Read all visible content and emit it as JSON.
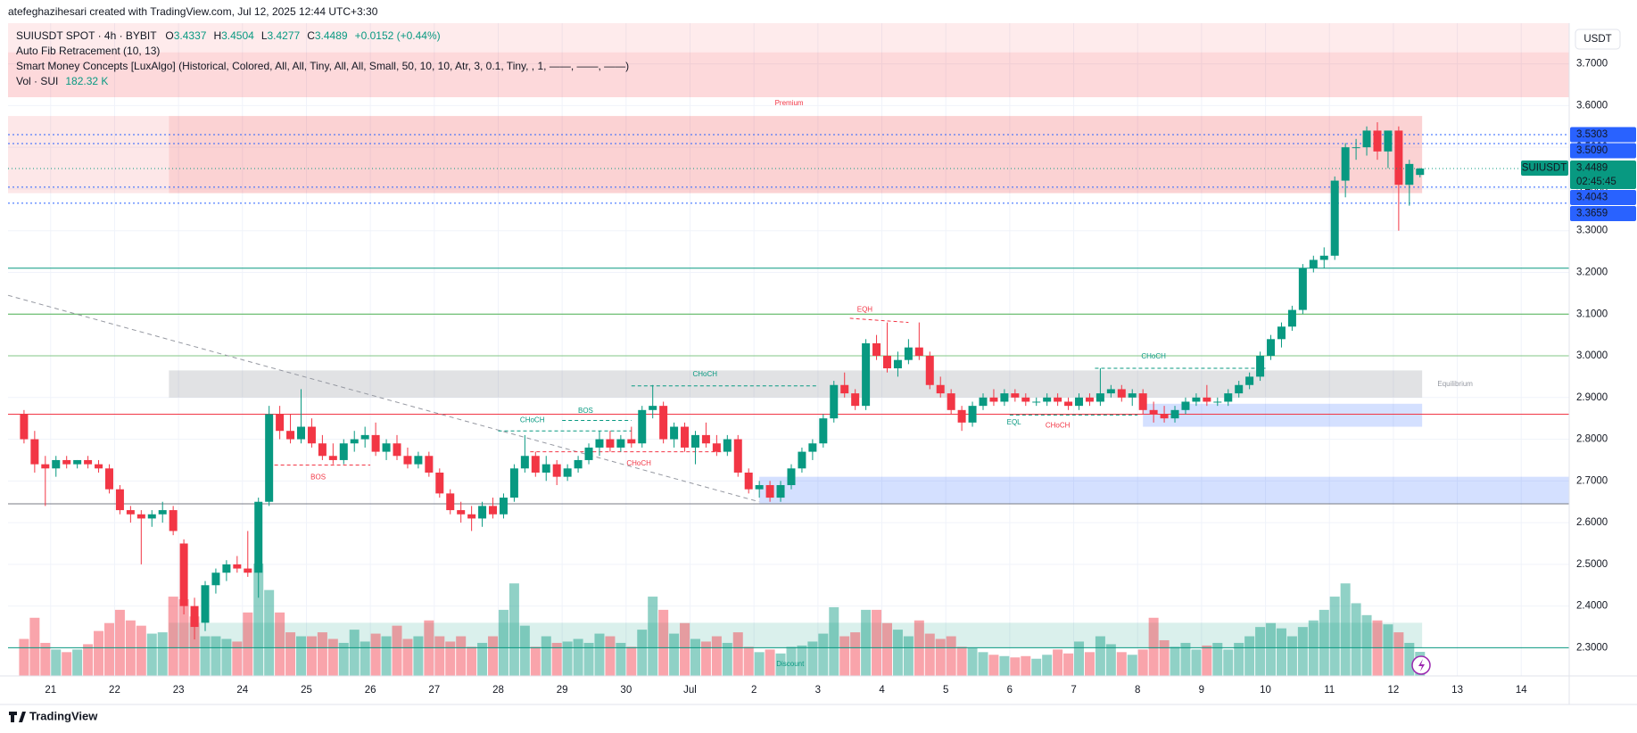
{
  "header": {
    "credit": "atefeghazihesari created with TradingView.com, Jul 12, 2025 12:44 UTC+3:30",
    "symbol": "SUIUSDT SPOT · 4h · BYBIT",
    "o": "O",
    "h": "H",
    "l": "L",
    "c": "C",
    "change": "+0.0152 (+0.44%)",
    "indicator_1": "Auto Fib Retracement (10, 13)",
    "indicator_2": "Smart Money Concepts [LuxAlgo] (Historical, Colored, All, All, Tiny, All, All, Small, 50, 10, 10, Atr, 3, 0.1, Tiny, , 1, ——, ——, ——)",
    "vol_title": "Vol · SUI",
    "vol_value": "182.32 K",
    "currency": "USDT",
    "logo": "TradingView"
  },
  "chart_data": {
    "type": "candlestick",
    "up_color": "#089981",
    "down_color": "#f23645",
    "grid": true,
    "price_tag": "SUIUSDT",
    "countdown": "02:45:45",
    "xlim": [
      -1,
      145.5
    ],
    "ylim": [
      2.2325,
      3.7975
    ],
    "xticks": [
      {
        "value": 3,
        "label": "21"
      },
      {
        "value": 9,
        "label": "22"
      },
      {
        "value": 15,
        "label": "23"
      },
      {
        "value": 21,
        "label": "24"
      },
      {
        "value": 27,
        "label": "25"
      },
      {
        "value": 33,
        "label": "26"
      },
      {
        "value": 39,
        "label": "27"
      },
      {
        "value": 45,
        "label": "28"
      },
      {
        "value": 51,
        "label": "29"
      },
      {
        "value": 57,
        "label": "30"
      },
      {
        "value": 63,
        "label": "Jul"
      },
      {
        "value": 69,
        "label": "2"
      },
      {
        "value": 75,
        "label": "3"
      },
      {
        "value": 81,
        "label": "4"
      },
      {
        "value": 87,
        "label": "5"
      },
      {
        "value": 93,
        "label": "6"
      },
      {
        "value": 99,
        "label": "7"
      },
      {
        "value": 105,
        "label": "8"
      },
      {
        "value": 111,
        "label": "9"
      },
      {
        "value": 117,
        "label": "10"
      },
      {
        "value": 123,
        "label": "11"
      },
      {
        "value": 129,
        "label": "12"
      },
      {
        "value": 135,
        "label": "13"
      },
      {
        "value": 141,
        "label": "14"
      }
    ],
    "yticks": [
      {
        "value": 2.3,
        "label": "2.3000"
      },
      {
        "value": 2.4,
        "label": "2.4000"
      },
      {
        "value": 2.5,
        "label": "2.5000"
      },
      {
        "value": 2.6,
        "label": "2.6000"
      },
      {
        "value": 2.7,
        "label": "2.7000"
      },
      {
        "value": 2.8,
        "label": "2.8000"
      },
      {
        "value": 2.9,
        "label": "2.9000"
      },
      {
        "value": 3.0,
        "label": "3.0000"
      },
      {
        "value": 3.1,
        "label": "3.1000"
      },
      {
        "value": 3.2,
        "label": "3.2000"
      },
      {
        "value": 3.3,
        "label": "3.3000"
      },
      {
        "value": 3.4,
        "label": "3.4000"
      },
      {
        "value": 3.5,
        "label": "3.5000"
      },
      {
        "value": 3.6,
        "label": "3.6000"
      },
      {
        "value": 3.7,
        "label": "3.7000"
      }
    ],
    "open": [
      2.86,
      2.8,
      2.74,
      2.73,
      2.75,
      2.74,
      2.75,
      2.74,
      2.73,
      2.68,
      2.63,
      2.62,
      2.61,
      2.62,
      2.63,
      2.55,
      2.4,
      2.36,
      2.45,
      2.48,
      2.5,
      2.49,
      2.48,
      2.65,
      2.86,
      2.82,
      2.8,
      2.83,
      2.79,
      2.76,
      2.75,
      2.79,
      2.8,
      2.81,
      2.77,
      2.79,
      2.76,
      2.74,
      2.76,
      2.72,
      2.67,
      2.63,
      2.62,
      2.61,
      2.64,
      2.62,
      2.66,
      2.73,
      2.76,
      2.72,
      2.74,
      2.71,
      2.73,
      2.75,
      2.78,
      2.8,
      2.78,
      2.8,
      2.79,
      2.87,
      2.88,
      2.8,
      2.83,
      2.78,
      2.81,
      2.79,
      2.77,
      2.8,
      2.72,
      2.68,
      2.69,
      2.66,
      2.69,
      2.73,
      2.77,
      2.79,
      2.85,
      2.93,
      2.91,
      2.88,
      3.03,
      3.0,
      2.97,
      2.99,
      3.02,
      3.0,
      2.93,
      2.91,
      2.87,
      2.84,
      2.88,
      2.9,
      2.89,
      2.91,
      2.9,
      2.89,
      2.89,
      2.9,
      2.89,
      2.88,
      2.9,
      2.89,
      2.91,
      2.92,
      2.9,
      2.91,
      2.87,
      2.86,
      2.85,
      2.87,
      2.89,
      2.9,
      2.89,
      2.89,
      2.91,
      2.93,
      2.95,
      3.0,
      3.04,
      3.07,
      3.11,
      3.21,
      3.23,
      3.24,
      3.42,
      3.5,
      3.5,
      3.54,
      3.49,
      3.54,
      3.41,
      3.4337
    ],
    "high": [
      2.87,
      2.82,
      2.76,
      2.76,
      2.76,
      2.75,
      2.76,
      2.75,
      2.74,
      2.69,
      2.64,
      2.63,
      2.63,
      2.65,
      2.64,
      2.56,
      2.42,
      2.46,
      2.49,
      2.51,
      2.52,
      2.58,
      2.66,
      2.88,
      2.88,
      2.86,
      2.92,
      2.85,
      2.81,
      2.79,
      2.8,
      2.82,
      2.83,
      2.84,
      2.8,
      2.81,
      2.78,
      2.77,
      2.77,
      2.73,
      2.68,
      2.65,
      2.64,
      2.65,
      2.66,
      2.67,
      2.74,
      2.81,
      2.77,
      2.76,
      2.75,
      2.74,
      2.76,
      2.79,
      2.82,
      2.82,
      2.81,
      2.83,
      2.88,
      2.93,
      2.89,
      2.84,
      2.84,
      2.82,
      2.84,
      2.81,
      2.81,
      2.81,
      2.73,
      2.7,
      2.7,
      2.7,
      2.74,
      2.78,
      2.8,
      2.86,
      2.94,
      2.96,
      2.92,
      3.04,
      3.05,
      3.08,
      3.01,
      3.04,
      3.08,
      3.01,
      2.95,
      2.92,
      2.88,
      2.89,
      2.91,
      2.92,
      2.92,
      2.92,
      2.91,
      2.9,
      2.91,
      2.91,
      2.9,
      2.91,
      2.91,
      2.97,
      2.93,
      2.93,
      2.92,
      2.92,
      2.89,
      2.88,
      2.88,
      2.9,
      2.91,
      2.93,
      2.9,
      2.92,
      2.94,
      2.96,
      3.01,
      3.05,
      3.08,
      3.12,
      3.22,
      3.24,
      3.26,
      3.43,
      3.51,
      3.52,
      3.55,
      3.56,
      3.54,
      3.55,
      3.47,
      3.4504
    ],
    "low": [
      2.79,
      2.72,
      2.64,
      2.71,
      2.73,
      2.73,
      2.73,
      2.72,
      2.67,
      2.62,
      2.6,
      2.5,
      2.59,
      2.6,
      2.57,
      2.38,
      2.32,
      2.34,
      2.43,
      2.46,
      2.48,
      2.47,
      2.42,
      2.64,
      2.8,
      2.79,
      2.79,
      2.78,
      2.75,
      2.74,
      2.74,
      2.77,
      2.78,
      2.76,
      2.75,
      2.75,
      2.73,
      2.73,
      2.71,
      2.66,
      2.62,
      2.6,
      2.58,
      2.59,
      2.61,
      2.61,
      2.65,
      2.72,
      2.71,
      2.7,
      2.69,
      2.7,
      2.72,
      2.74,
      2.76,
      2.77,
      2.77,
      2.78,
      2.78,
      2.85,
      2.79,
      2.78,
      2.77,
      2.74,
      2.78,
      2.76,
      2.76,
      2.71,
      2.67,
      2.66,
      2.65,
      2.65,
      2.68,
      2.72,
      2.75,
      2.78,
      2.84,
      2.9,
      2.87,
      2.87,
      2.99,
      2.96,
      2.95,
      2.98,
      2.99,
      2.92,
      2.9,
      2.86,
      2.82,
      2.83,
      2.87,
      2.88,
      2.88,
      2.89,
      2.88,
      2.88,
      2.88,
      2.88,
      2.87,
      2.87,
      2.88,
      2.88,
      2.9,
      2.89,
      2.88,
      2.86,
      2.84,
      2.84,
      2.84,
      2.86,
      2.88,
      2.88,
      2.88,
      2.88,
      2.9,
      2.92,
      2.94,
      2.99,
      3.02,
      3.06,
      3.1,
      3.2,
      3.21,
      3.23,
      3.38,
      3.47,
      3.48,
      3.47,
      3.45,
      3.3,
      3.36,
      3.4277
    ],
    "close": [
      2.8,
      2.74,
      2.73,
      2.75,
      2.74,
      2.75,
      2.74,
      2.73,
      2.68,
      2.63,
      2.62,
      2.61,
      2.62,
      2.63,
      2.58,
      2.4,
      2.35,
      2.45,
      2.48,
      2.5,
      2.49,
      2.48,
      2.65,
      2.86,
      2.82,
      2.8,
      2.83,
      2.79,
      2.76,
      2.75,
      2.79,
      2.8,
      2.81,
      2.77,
      2.79,
      2.76,
      2.74,
      2.76,
      2.72,
      2.67,
      2.63,
      2.62,
      2.61,
      2.64,
      2.62,
      2.66,
      2.73,
      2.76,
      2.72,
      2.74,
      2.71,
      2.73,
      2.75,
      2.78,
      2.8,
      2.78,
      2.8,
      2.79,
      2.87,
      2.88,
      2.8,
      2.83,
      2.78,
      2.81,
      2.79,
      2.77,
      2.8,
      2.72,
      2.68,
      2.69,
      2.66,
      2.69,
      2.73,
      2.77,
      2.79,
      2.85,
      2.93,
      2.91,
      2.88,
      3.03,
      3.0,
      2.97,
      2.99,
      3.02,
      3.0,
      2.93,
      2.91,
      2.87,
      2.84,
      2.88,
      2.9,
      2.89,
      2.91,
      2.9,
      2.89,
      2.89,
      2.9,
      2.89,
      2.88,
      2.9,
      2.89,
      2.91,
      2.92,
      2.9,
      2.91,
      2.87,
      2.86,
      2.85,
      2.87,
      2.89,
      2.9,
      2.89,
      2.89,
      2.91,
      2.93,
      2.95,
      3.0,
      3.04,
      3.07,
      3.11,
      3.21,
      3.23,
      3.24,
      3.42,
      3.5,
      3.5,
      3.54,
      3.49,
      3.54,
      3.41,
      3.46,
      3.4489
    ],
    "volume": [
      280,
      440,
      250,
      200,
      180,
      200,
      240,
      340,
      400,
      500,
      420,
      380,
      320,
      330,
      600,
      580,
      450,
      300,
      300,
      280,
      260,
      480,
      850,
      650,
      480,
      330,
      300,
      300,
      330,
      280,
      250,
      350,
      260,
      320,
      300,
      380,
      280,
      300,
      420,
      300,
      260,
      300,
      220,
      250,
      300,
      500,
      700,
      380,
      220,
      300,
      250,
      260,
      280,
      250,
      320,
      300,
      250,
      220,
      350,
      600,
      500,
      320,
      400,
      280,
      260,
      300,
      250,
      330,
      220,
      180,
      200,
      170,
      220,
      230,
      260,
      320,
      520,
      300,
      330,
      500,
      500,
      400,
      350,
      300,
      420,
      320,
      280,
      300,
      220,
      210,
      180,
      160,
      150,
      140,
      150,
      130,
      160,
      200,
      170,
      260,
      180,
      300,
      240,
      180,
      160,
      200,
      440,
      270,
      220,
      250,
      200,
      230,
      250,
      200,
      250,
      300,
      370,
      400,
      360,
      300,
      370,
      420,
      500,
      600,
      700,
      550,
      460,
      420,
      390,
      330,
      250,
      182.32
    ],
    "zones": [
      {
        "x": [
          -1,
          145.5
        ],
        "y": [
          3.62,
          3.7975
        ],
        "color": "rgba(242,54,69,0.10)"
      },
      {
        "x": [
          -1,
          145.5
        ],
        "y": [
          3.62,
          3.7275
        ],
        "color": "rgba(242,54,69,0.10)"
      },
      {
        "x": [
          -1,
          131.7
        ],
        "y": [
          3.39,
          3.575
        ],
        "color": "rgba(242,54,69,0.12)"
      },
      {
        "x": [
          14.1,
          131.7
        ],
        "y": [
          3.39,
          3.575
        ],
        "color": "rgba(242,54,69,0.12)"
      },
      {
        "x": [
          14.1,
          131.7
        ],
        "y": [
          2.9,
          2.965
        ],
        "color": "rgba(120,123,134,0.22)"
      },
      {
        "x": [
          105.5,
          131.7
        ],
        "y": [
          2.83,
          2.885
        ],
        "color": "rgba(41,98,255,0.20)"
      },
      {
        "x": [
          69.5,
          145.5
        ],
        "y": [
          2.645,
          2.71
        ],
        "color": "rgba(41,98,255,0.20)"
      },
      {
        "x": [
          14.1,
          131.7
        ],
        "y": [
          2.3,
          2.36
        ],
        "color": "rgba(8,153,129,0.15)"
      }
    ],
    "levels": [
      {
        "value": 3.21,
        "color": "#089981"
      },
      {
        "value": 3.1,
        "color": "#4caf50"
      },
      {
        "value": 3.0,
        "color": "#81c784"
      },
      {
        "value": 2.86,
        "color": "#f23645"
      },
      {
        "value": 2.645,
        "color": "#787b86"
      },
      {
        "value": 2.3,
        "color": "#089981"
      }
    ],
    "price_lines": [
      {
        "value": 3.5303,
        "label": "3.5303",
        "color": "#2962ff"
      },
      {
        "value": 3.509,
        "label": "3.5090",
        "color": "#2962ff"
      },
      {
        "value": 3.4043,
        "label": "3.4043",
        "color": "#2962ff"
      },
      {
        "value": 3.3659,
        "label": "3.3659",
        "color": "#2962ff"
      }
    ],
    "trendline": {
      "x": [
        -1,
        69.5
      ],
      "y": [
        3.145,
        2.65
      ]
    },
    "structure_lines": [
      {
        "x": [
          57.5,
          75
        ],
        "y": [
          2.928,
          2.928
        ],
        "color": "#089981"
      },
      {
        "x": [
          45,
          57.5
        ],
        "y": [
          2.82,
          2.82
        ],
        "color": "#089981"
      },
      {
        "x": [
          51,
          57.5
        ],
        "y": [
          2.845,
          2.845
        ],
        "color": "#089981"
      },
      {
        "x": [
          101,
          117
        ],
        "y": [
          2.97,
          2.97
        ],
        "color": "#089981"
      },
      {
        "x": [
          93,
          105
        ],
        "y": [
          2.858,
          2.858
        ],
        "color": "#089981"
      },
      {
        "x": [
          48,
          66
        ],
        "y": [
          2.77,
          2.77
        ],
        "color": "#f23645"
      },
      {
        "x": [
          24,
          33
        ],
        "y": [
          2.738,
          2.738
        ],
        "color": "#f23645"
      },
      {
        "x": [
          78,
          83.5
        ],
        "y": [
          3.09,
          3.08
        ],
        "color": "#f23645"
      }
    ],
    "annotations": [
      {
        "text": "Premium",
        "x": 72.3,
        "y": 3.605,
        "color": "#f23645"
      },
      {
        "text": "Equilibrium",
        "x": 134.8,
        "y": 2.932,
        "color": "#9598a1"
      },
      {
        "text": "Discount",
        "x": 72.4,
        "y": 2.26,
        "color": "#089981"
      },
      {
        "text": "CHoCH",
        "x": 64.4,
        "y": 2.955,
        "color": "#089981"
      },
      {
        "text": "BOS",
        "x": 53.2,
        "y": 2.868,
        "color": "#089981"
      },
      {
        "text": "CHoCH",
        "x": 48.2,
        "y": 2.845,
        "color": "#089981"
      },
      {
        "text": "BOS",
        "x": 28.1,
        "y": 2.708,
        "color": "#f23645"
      },
      {
        "text": "CHoCH",
        "x": 58.2,
        "y": 2.742,
        "color": "#f23645"
      },
      {
        "text": "EQH",
        "x": 79.4,
        "y": 3.11,
        "color": "#f23645"
      },
      {
        "text": "CHoCH",
        "x": 106.5,
        "y": 2.998,
        "color": "#089981"
      },
      {
        "text": "EQL",
        "x": 93.4,
        "y": 2.84,
        "color": "#089981"
      },
      {
        "text": "CHoCH",
        "x": 97.5,
        "y": 2.832,
        "color": "#f23645"
      }
    ]
  }
}
